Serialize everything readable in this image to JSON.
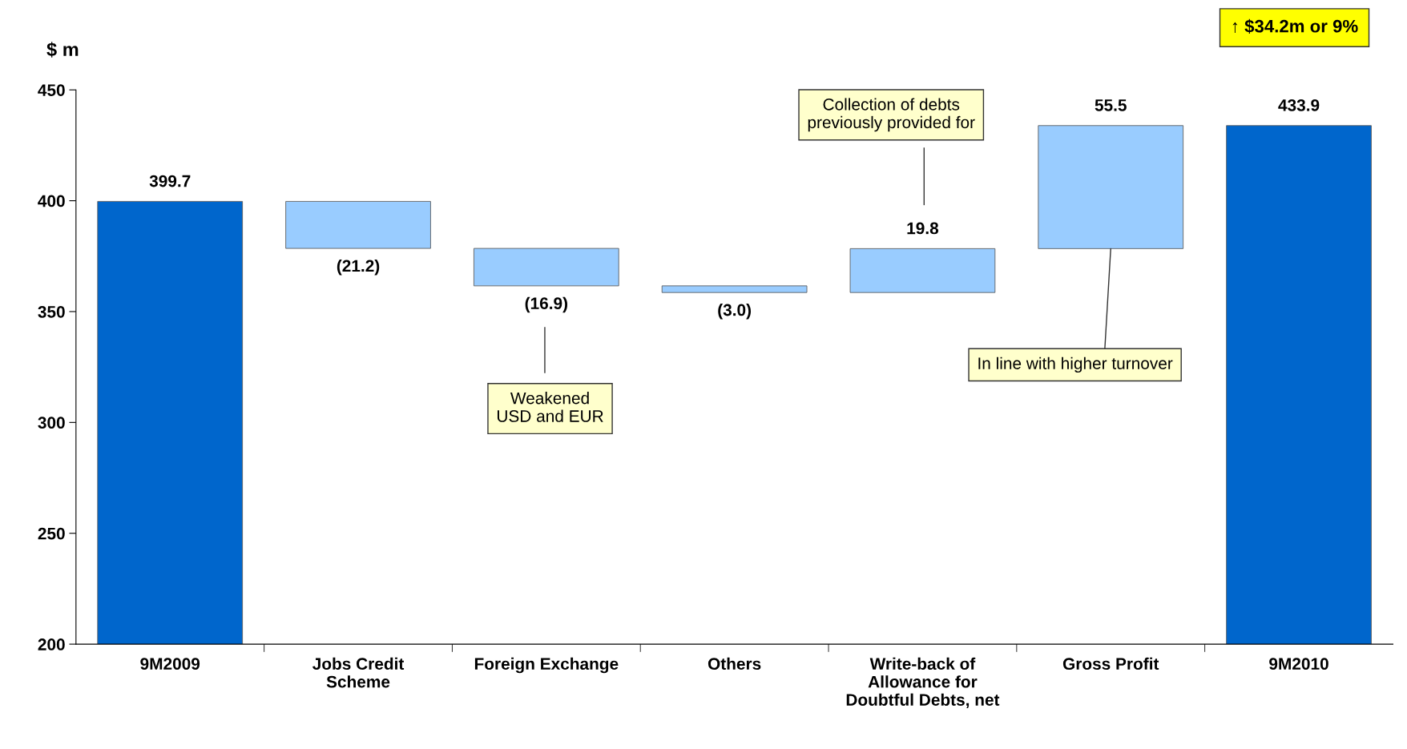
{
  "chart_data": {
    "type": "bar",
    "categories": [
      "9M2009",
      "Jobs Credit\nScheme",
      "Foreign Exchange",
      "Others",
      "Write-back of\nAllowance for\nDoubtful Debts, net",
      "Gross Profit",
      "9M2010"
    ],
    "values": [
      399.7,
      -21.2,
      -16.9,
      -3.0,
      19.8,
      55.5,
      433.9
    ],
    "base": [
      null,
      399.7,
      378.5,
      361.6,
      358.6,
      378.4,
      null
    ],
    "colors": [
      "#0066cc",
      "#99ccff",
      "#99ccff",
      "#99ccff",
      "#99ccff",
      "#99ccff",
      "#0066cc"
    ],
    "value_labels": [
      "399.7",
      "(21.2)",
      "(16.9)",
      "(3.0)",
      "19.8",
      "55.5",
      "433.9"
    ],
    "ylabel": "$ m",
    "ylim": [
      200,
      450
    ],
    "yticks": [
      200,
      250,
      300,
      350,
      400,
      450
    ],
    "grid": false,
    "annotations": [
      "Weakened\nUSD and EUR",
      "Collection of debts\npreviously provided for",
      {
        "text": "In line with higher turnover",
        "x": "Gross Profit",
        "y": 378.4
      },
      "↑ $34.2m or 9%"
    ]
  }
}
